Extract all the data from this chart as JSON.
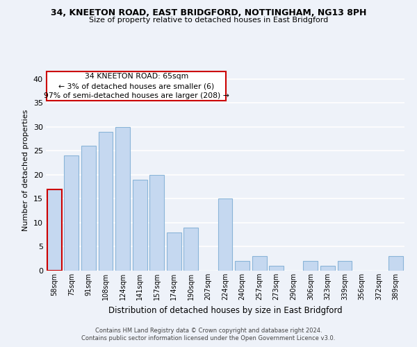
{
  "title": "34, KNEETON ROAD, EAST BRIDGFORD, NOTTINGHAM, NG13 8PH",
  "subtitle": "Size of property relative to detached houses in East Bridgford",
  "xlabel": "Distribution of detached houses by size in East Bridgford",
  "ylabel": "Number of detached properties",
  "bar_labels": [
    "58sqm",
    "75sqm",
    "91sqm",
    "108sqm",
    "124sqm",
    "141sqm",
    "157sqm",
    "174sqm",
    "190sqm",
    "207sqm",
    "224sqm",
    "240sqm",
    "257sqm",
    "273sqm",
    "290sqm",
    "306sqm",
    "323sqm",
    "339sqm",
    "356sqm",
    "372sqm",
    "389sqm"
  ],
  "bar_values": [
    17,
    24,
    26,
    29,
    30,
    19,
    20,
    8,
    9,
    0,
    15,
    2,
    3,
    1,
    0,
    2,
    1,
    2,
    0,
    0,
    3
  ],
  "bar_color": "#c5d8f0",
  "bar_edge_color": "#8ab4d8",
  "highlight_bar_edge_color": "#cc0000",
  "highlight_index": 0,
  "annotation_text": "34 KNEETON ROAD: 65sqm\n← 3% of detached houses are smaller (6)\n97% of semi-detached houses are larger (208) →",
  "annotation_box_color": "#ffffff",
  "annotation_box_edge_color": "#cc0000",
  "ylim": [
    0,
    42
  ],
  "yticks": [
    0,
    5,
    10,
    15,
    20,
    25,
    30,
    35,
    40
  ],
  "background_color": "#eef2f9",
  "grid_color": "#ffffff",
  "footer_line1": "Contains HM Land Registry data © Crown copyright and database right 2024.",
  "footer_line2": "Contains public sector information licensed under the Open Government Licence v3.0."
}
